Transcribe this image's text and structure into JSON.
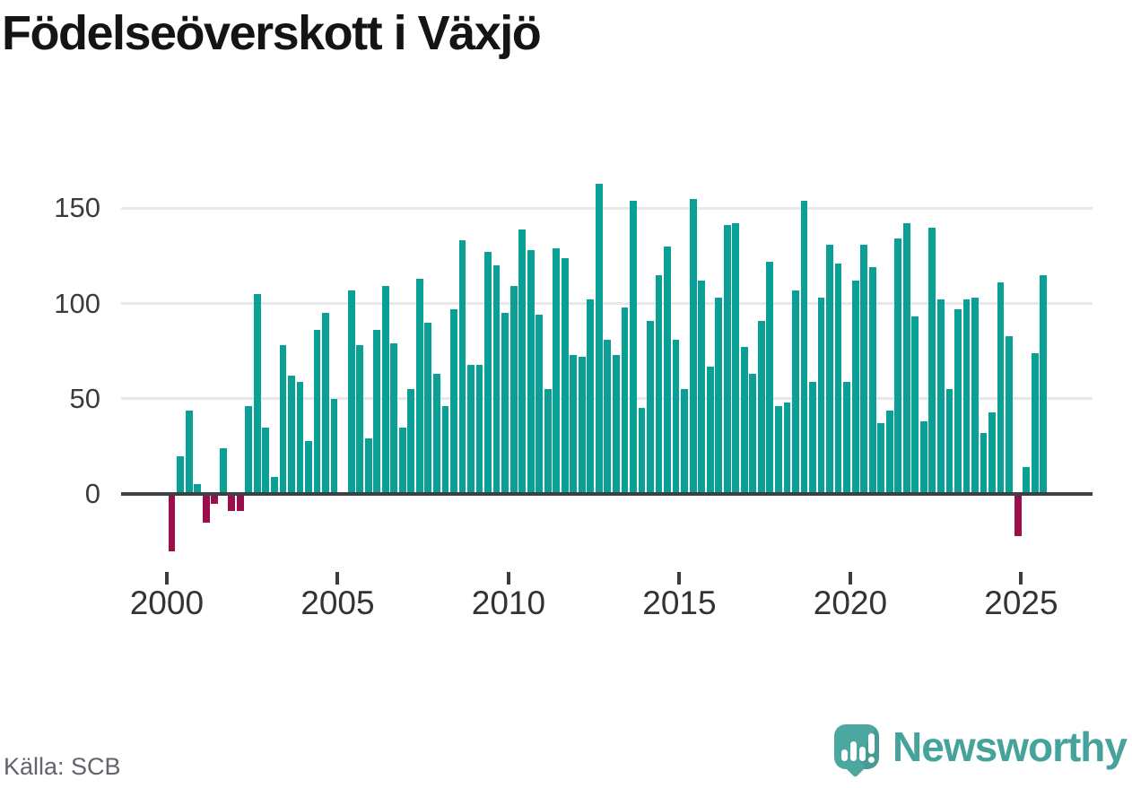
{
  "title": "Födelseöverskott i Växjö",
  "source": "Källa: SCB",
  "logo": {
    "text": "Newsworthy",
    "icon": "chart-speech-bubble-icon"
  },
  "colors": {
    "bar_positive": "#0aa096",
    "bar_negative": "#9c0d4c",
    "zero_line": "#3d4044",
    "gridline": "#e8e8e8",
    "logo_teal": "#4ba79f",
    "logo_text_teal": "#46a39c"
  },
  "chart_data": {
    "type": "bar",
    "title": "Födelseöverskott i Växjö",
    "xlabel": "",
    "ylabel": "",
    "grid": true,
    "legend": "none",
    "yticks": [
      0,
      50,
      100,
      150
    ],
    "xticks": [
      2000,
      2005,
      2010,
      2015,
      2020,
      2025
    ],
    "ylim": [
      -40,
      175
    ],
    "frequency": "quarterly",
    "first_period": "2000 Q1",
    "last_period": "2025 Q3",
    "series": [
      {
        "name": "Födelseöverskott",
        "years": [
          {
            "year": 2000,
            "values": [
              -30,
              20,
              44,
              5
            ]
          },
          {
            "year": 2001,
            "values": [
              -15,
              -5,
              24,
              -9
            ]
          },
          {
            "year": 2002,
            "values": [
              -9,
              46,
              105,
              35
            ]
          },
          {
            "year": 2003,
            "values": [
              9,
              78,
              62,
              59
            ]
          },
          {
            "year": 2004,
            "values": [
              28,
              86,
              95,
              50
            ]
          },
          {
            "year": 2005,
            "values": [
              0,
              107,
              78,
              29
            ]
          },
          {
            "year": 2006,
            "values": [
              86,
              109,
              79,
              35
            ]
          },
          {
            "year": 2007,
            "values": [
              55,
              113,
              90,
              63
            ]
          },
          {
            "year": 2008,
            "values": [
              46,
              97,
              133,
              68
            ]
          },
          {
            "year": 2009,
            "values": [
              68,
              127,
              120,
              95
            ]
          },
          {
            "year": 2010,
            "values": [
              109,
              139,
              128,
              94
            ]
          },
          {
            "year": 2011,
            "values": [
              55,
              129,
              124,
              73
            ]
          },
          {
            "year": 2012,
            "values": [
              72,
              102,
              163,
              81
            ]
          },
          {
            "year": 2013,
            "values": [
              73,
              98,
              154,
              45
            ]
          },
          {
            "year": 2014,
            "values": [
              91,
              115,
              130,
              81
            ]
          },
          {
            "year": 2015,
            "values": [
              55,
              155,
              112,
              67
            ]
          },
          {
            "year": 2016,
            "values": [
              103,
              141,
              142,
              77
            ]
          },
          {
            "year": 2017,
            "values": [
              63,
              91,
              122,
              46
            ]
          },
          {
            "year": 2018,
            "values": [
              48,
              107,
              154,
              59
            ]
          },
          {
            "year": 2019,
            "values": [
              103,
              131,
              121,
              59
            ]
          },
          {
            "year": 2020,
            "values": [
              112,
              131,
              119,
              37
            ]
          },
          {
            "year": 2021,
            "values": [
              44,
              134,
              142,
              93
            ]
          },
          {
            "year": 2022,
            "values": [
              38,
              140,
              102,
              55
            ]
          },
          {
            "year": 2023,
            "values": [
              97,
              102,
              103,
              32
            ]
          },
          {
            "year": 2024,
            "values": [
              43,
              111,
              83,
              -22
            ]
          },
          {
            "year": 2025,
            "values": [
              14,
              74,
              115
            ]
          }
        ]
      }
    ]
  }
}
